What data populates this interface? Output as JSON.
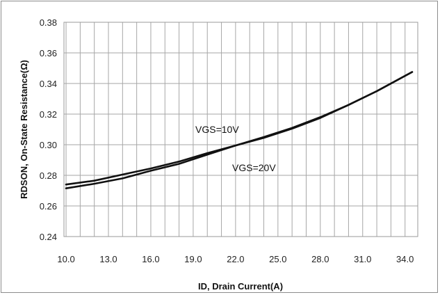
{
  "chart_data": {
    "type": "line",
    "xlabel": "ID, Drain Current(A)",
    "ylabel": "RDSON, On-State Resistance(Ω)",
    "xlim": [
      9.85,
      34.9
    ],
    "ylim": [
      0.24,
      0.38
    ],
    "x_ticks": [
      "10.0",
      "13.0",
      "16.0",
      "19.0",
      "22.0",
      "25.0",
      "28.0",
      "31.0",
      "34.0"
    ],
    "y_ticks": [
      "0.24",
      "0.26",
      "0.28",
      "0.30",
      "0.32",
      "0.34",
      "0.36",
      "0.38"
    ],
    "grid": true,
    "legend": "none",
    "series": [
      {
        "name": "VGS=10V",
        "x": [
          10.0,
          12.0,
          14.0,
          16.0,
          18.0,
          20.0,
          22.0,
          24.0,
          26.0,
          28.0,
          30.0,
          32.0,
          34.5
        ],
        "y": [
          0.274,
          0.2765,
          0.2805,
          0.2845,
          0.289,
          0.2945,
          0.2995,
          0.305,
          0.311,
          0.318,
          0.326,
          0.335,
          0.3475
        ]
      },
      {
        "name": "VGS=20V",
        "x": [
          10.0,
          12.0,
          14.0,
          16.0,
          18.0,
          20.0,
          22.0,
          24.0,
          26.0,
          28.0,
          30.0,
          32.0,
          34.5
        ],
        "y": [
          0.2715,
          0.2745,
          0.278,
          0.283,
          0.2875,
          0.2935,
          0.2995,
          0.3045,
          0.3105,
          0.3175,
          0.326,
          0.335,
          0.3475
        ]
      }
    ],
    "annotations": [
      "VGS=10V",
      "VGS=20V"
    ]
  }
}
